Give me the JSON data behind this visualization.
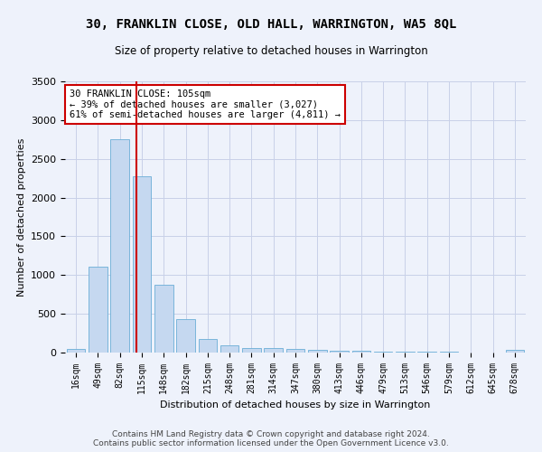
{
  "title": "30, FRANKLIN CLOSE, OLD HALL, WARRINGTON, WA5 8QL",
  "subtitle": "Size of property relative to detached houses in Warrington",
  "xlabel": "Distribution of detached houses by size in Warrington",
  "ylabel": "Number of detached properties",
  "bar_labels": [
    "16sqm",
    "49sqm",
    "82sqm",
    "115sqm",
    "148sqm",
    "182sqm",
    "215sqm",
    "248sqm",
    "281sqm",
    "314sqm",
    "347sqm",
    "380sqm",
    "413sqm",
    "446sqm",
    "479sqm",
    "513sqm",
    "546sqm",
    "579sqm",
    "612sqm",
    "645sqm",
    "678sqm"
  ],
  "bar_values": [
    50,
    1110,
    2750,
    2280,
    870,
    430,
    170,
    95,
    55,
    55,
    50,
    35,
    25,
    20,
    15,
    15,
    10,
    8,
    5,
    5,
    30
  ],
  "bar_color": "#c5d8f0",
  "bar_edge_color": "#6aaed6",
  "red_line_color": "#cc0000",
  "annotation_text": "30 FRANKLIN CLOSE: 105sqm\n← 39% of detached houses are smaller (3,027)\n61% of semi-detached houses are larger (4,811) →",
  "annotation_box_color": "#ffffff",
  "annotation_box_edge": "#cc0000",
  "footer_text": "Contains HM Land Registry data © Crown copyright and database right 2024.\nContains public sector information licensed under the Open Government Licence v3.0.",
  "ylim": [
    0,
    3500
  ],
  "bg_color": "#eef2fb",
  "grid_color": "#c8d0e8",
  "title_fontsize": 10,
  "subtitle_fontsize": 8.5,
  "ylabel_fontsize": 8,
  "xlabel_fontsize": 8,
  "tick_fontsize": 7,
  "ytick_fontsize": 8,
  "footer_fontsize": 6.5
}
